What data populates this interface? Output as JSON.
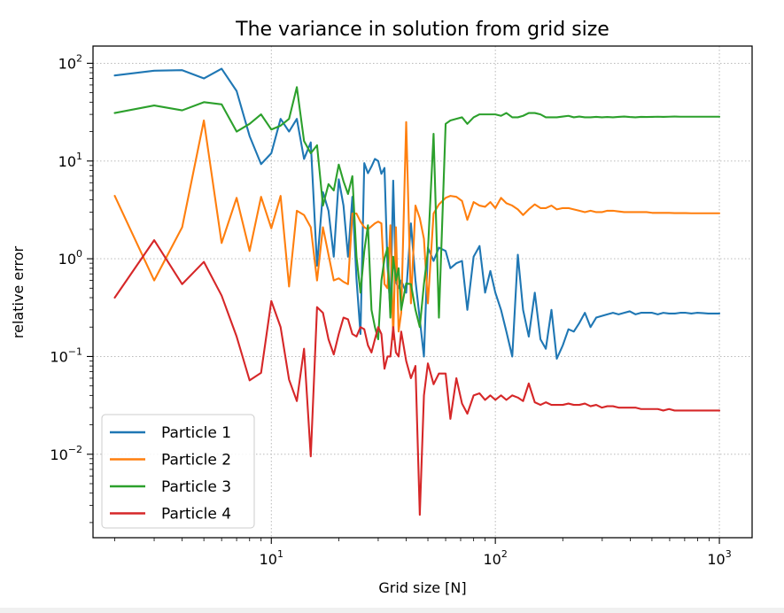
{
  "chart_data": {
    "type": "line",
    "title": "The variance in solution from grid size",
    "xlabel": "Grid size [N]",
    "ylabel": "relative error",
    "xscale": "log",
    "yscale": "log",
    "xlim": [
      1.6,
      1400
    ],
    "ylim": [
      0.0014,
      150
    ],
    "grid": true,
    "legend_position": "lower-left",
    "x_ticks": [
      {
        "base": "10",
        "exp": "1",
        "value": 10
      },
      {
        "base": "10",
        "exp": "2",
        "value": 100
      },
      {
        "base": "10",
        "exp": "3",
        "value": 1000
      }
    ],
    "y_ticks": [
      {
        "base": "10",
        "exp": "−2",
        "value": 0.01
      },
      {
        "base": "10",
        "exp": "−1",
        "value": 0.1
      },
      {
        "base": "10",
        "exp": "0",
        "value": 1
      },
      {
        "base": "10",
        "exp": "1",
        "value": 10
      },
      {
        "base": "10",
        "exp": "2",
        "value": 100
      }
    ],
    "series": [
      {
        "name": "Particle 1",
        "color": "#1f77b4",
        "x": [
          2,
          3,
          4,
          5,
          6,
          7,
          8,
          9,
          10,
          11,
          12,
          13,
          14,
          15,
          16,
          17,
          18,
          19,
          20,
          21,
          22,
          23,
          24,
          25,
          26,
          27,
          28,
          29,
          30,
          31,
          32,
          33,
          34,
          35,
          36,
          37,
          38,
          40,
          42,
          44,
          46,
          48,
          50,
          53,
          56,
          60,
          63,
          67,
          71,
          75,
          80,
          85,
          90,
          95,
          100,
          106,
          112,
          119,
          126,
          133,
          141,
          150,
          159,
          168,
          178,
          188,
          200,
          212,
          224,
          237,
          251,
          266,
          282,
          299,
          316,
          335,
          355,
          376,
          398,
          422,
          447,
          473,
          501,
          531,
          562,
          596,
          631,
          668,
          708,
          750,
          794,
          841,
          891,
          944,
          1000
        ],
        "values": [
          75,
          84,
          85,
          70,
          88,
          52,
          18,
          9.3,
          12,
          27,
          20,
          27,
          10.5,
          15.5,
          0.85,
          4.8,
          3.1,
          1.05,
          6.5,
          3.5,
          1.05,
          4.3,
          0.62,
          0.17,
          9.5,
          7.5,
          8.8,
          10.5,
          10,
          7.4,
          8.5,
          0.85,
          0.3,
          6.3,
          0.58,
          0.5,
          0.6,
          0.45,
          2.3,
          0.6,
          0.24,
          0.1,
          1.3,
          0.95,
          1.3,
          1.2,
          0.8,
          0.9,
          0.95,
          0.3,
          1.05,
          1.35,
          0.45,
          0.75,
          0.45,
          0.3,
          0.18,
          0.1,
          1.1,
          0.3,
          0.16,
          0.45,
          0.15,
          0.12,
          0.3,
          0.095,
          0.13,
          0.19,
          0.18,
          0.22,
          0.28,
          0.2,
          0.25,
          0.26,
          0.27,
          0.28,
          0.27,
          0.28,
          0.29,
          0.27,
          0.28,
          0.28,
          0.28,
          0.27,
          0.28,
          0.275,
          0.275,
          0.28,
          0.28,
          0.275,
          0.28,
          0.278,
          0.275,
          0.275,
          0.275
        ]
      },
      {
        "name": "Particle 2",
        "color": "#ff7f0e",
        "x": [
          2,
          3,
          4,
          5,
          6,
          7,
          8,
          9,
          10,
          11,
          12,
          13,
          14,
          15,
          16,
          17,
          18,
          19,
          20,
          21,
          22,
          23,
          24,
          25,
          26,
          27,
          28,
          29,
          30,
          31,
          32,
          33,
          34,
          35,
          36,
          37,
          38,
          40,
          42,
          44,
          46,
          48,
          50,
          53,
          56,
          60,
          63,
          67,
          71,
          75,
          80,
          85,
          90,
          95,
          100,
          106,
          112,
          119,
          126,
          133,
          141,
          150,
          159,
          168,
          178,
          188,
          200,
          212,
          224,
          237,
          251,
          266,
          282,
          299,
          316,
          335,
          355,
          376,
          398,
          422,
          447,
          473,
          501,
          531,
          562,
          596,
          631,
          668,
          708,
          750,
          794,
          841,
          891,
          944,
          1000
        ],
        "values": [
          4.4,
          0.6,
          2.1,
          26,
          1.45,
          4.2,
          1.2,
          4.3,
          2.05,
          4.4,
          0.52,
          3.1,
          2.8,
          2.1,
          0.6,
          2.1,
          1.1,
          0.6,
          0.63,
          0.58,
          0.55,
          2.9,
          2.9,
          2.4,
          2.1,
          2.0,
          2.15,
          2.3,
          2.4,
          2.3,
          0.55,
          0.5,
          2.2,
          0.15,
          2.1,
          0.18,
          0.28,
          25,
          0.35,
          3.5,
          2.6,
          1.6,
          0.35,
          2.9,
          3.6,
          4.2,
          4.4,
          4.3,
          3.9,
          2.5,
          3.8,
          3.5,
          3.4,
          3.8,
          3.3,
          4.2,
          3.7,
          3.5,
          3.2,
          2.8,
          3.2,
          3.6,
          3.3,
          3.3,
          3.5,
          3.2,
          3.3,
          3.3,
          3.2,
          3.1,
          3.0,
          3.1,
          3.0,
          3.0,
          3.1,
          3.1,
          3.05,
          3.0,
          3.0,
          3.0,
          3.0,
          3.0,
          2.95,
          2.95,
          2.95,
          2.95,
          2.93,
          2.93,
          2.93,
          2.92,
          2.92,
          2.92,
          2.92,
          2.92,
          2.92
        ]
      },
      {
        "name": "Particle 3",
        "color": "#2ca02c",
        "x": [
          2,
          3,
          4,
          5,
          6,
          7,
          8,
          9,
          10,
          11,
          12,
          13,
          14,
          15,
          16,
          17,
          18,
          19,
          20,
          21,
          22,
          23,
          24,
          25,
          26,
          27,
          28,
          29,
          30,
          31,
          32,
          33,
          34,
          35,
          36,
          37,
          38,
          40,
          42,
          44,
          46,
          48,
          50,
          53,
          56,
          60,
          63,
          67,
          71,
          75,
          80,
          85,
          90,
          95,
          100,
          106,
          112,
          119,
          126,
          133,
          141,
          150,
          159,
          168,
          178,
          188,
          200,
          212,
          224,
          237,
          251,
          266,
          282,
          299,
          316,
          335,
          355,
          376,
          398,
          422,
          447,
          473,
          501,
          531,
          562,
          596,
          631,
          668,
          708,
          750,
          794,
          841,
          891,
          944,
          1000
        ],
        "values": [
          31,
          37,
          33,
          40,
          38,
          20,
          24,
          30,
          21,
          23,
          27,
          57,
          16,
          12,
          14.5,
          3.5,
          5.8,
          5.0,
          9.2,
          6.2,
          4.6,
          7.0,
          1.05,
          0.45,
          1.2,
          2.2,
          0.3,
          0.2,
          0.15,
          0.6,
          1.0,
          1.3,
          0.25,
          1.05,
          0.6,
          0.8,
          0.3,
          0.56,
          0.55,
          0.3,
          0.2,
          0.55,
          1.2,
          19,
          0.25,
          24,
          26,
          27,
          28,
          24,
          28,
          30,
          30,
          30,
          30,
          29,
          31,
          28,
          28,
          29,
          31,
          31,
          30,
          28,
          28,
          28,
          28.5,
          29,
          28,
          28.5,
          28,
          28,
          28.3,
          28,
          28.2,
          28,
          28.3,
          28.5,
          28.2,
          28,
          28.3,
          28.2,
          28.3,
          28.4,
          28.3,
          28.4,
          28.5,
          28.4,
          28.4,
          28.4,
          28.4,
          28.4,
          28.4,
          28.4,
          28.4
        ]
      },
      {
        "name": "Particle 4",
        "color": "#d62728",
        "x": [
          2,
          3,
          4,
          5,
          6,
          7,
          8,
          9,
          10,
          11,
          12,
          13,
          14,
          15,
          16,
          17,
          18,
          19,
          20,
          21,
          22,
          23,
          24,
          25,
          26,
          27,
          28,
          29,
          30,
          31,
          32,
          33,
          34,
          35,
          36,
          37,
          38,
          40,
          42,
          44,
          46,
          48,
          50,
          53,
          56,
          60,
          63,
          67,
          71,
          75,
          80,
          85,
          90,
          95,
          100,
          106,
          112,
          119,
          126,
          133,
          141,
          150,
          159,
          168,
          178,
          188,
          200,
          212,
          224,
          237,
          251,
          266,
          282,
          299,
          316,
          335,
          355,
          376,
          398,
          422,
          447,
          473,
          501,
          531,
          562,
          596,
          631,
          668,
          708,
          750,
          794,
          841,
          891,
          944,
          1000
        ],
        "values": [
          0.4,
          1.55,
          0.55,
          0.93,
          0.42,
          0.16,
          0.057,
          0.068,
          0.37,
          0.2,
          0.058,
          0.035,
          0.12,
          0.0095,
          0.32,
          0.28,
          0.15,
          0.105,
          0.17,
          0.25,
          0.24,
          0.17,
          0.16,
          0.2,
          0.19,
          0.13,
          0.11,
          0.15,
          0.2,
          0.17,
          0.075,
          0.1,
          0.1,
          0.2,
          0.11,
          0.1,
          0.18,
          0.09,
          0.06,
          0.08,
          0.0024,
          0.04,
          0.085,
          0.052,
          0.067,
          0.067,
          0.023,
          0.06,
          0.033,
          0.026,
          0.04,
          0.042,
          0.036,
          0.04,
          0.036,
          0.04,
          0.036,
          0.04,
          0.038,
          0.035,
          0.053,
          0.034,
          0.032,
          0.034,
          0.032,
          0.032,
          0.032,
          0.033,
          0.032,
          0.032,
          0.033,
          0.031,
          0.032,
          0.03,
          0.031,
          0.031,
          0.03,
          0.03,
          0.03,
          0.03,
          0.029,
          0.029,
          0.029,
          0.029,
          0.028,
          0.029,
          0.028,
          0.028,
          0.028,
          0.028,
          0.028,
          0.028,
          0.028,
          0.028,
          0.028
        ]
      }
    ]
  }
}
